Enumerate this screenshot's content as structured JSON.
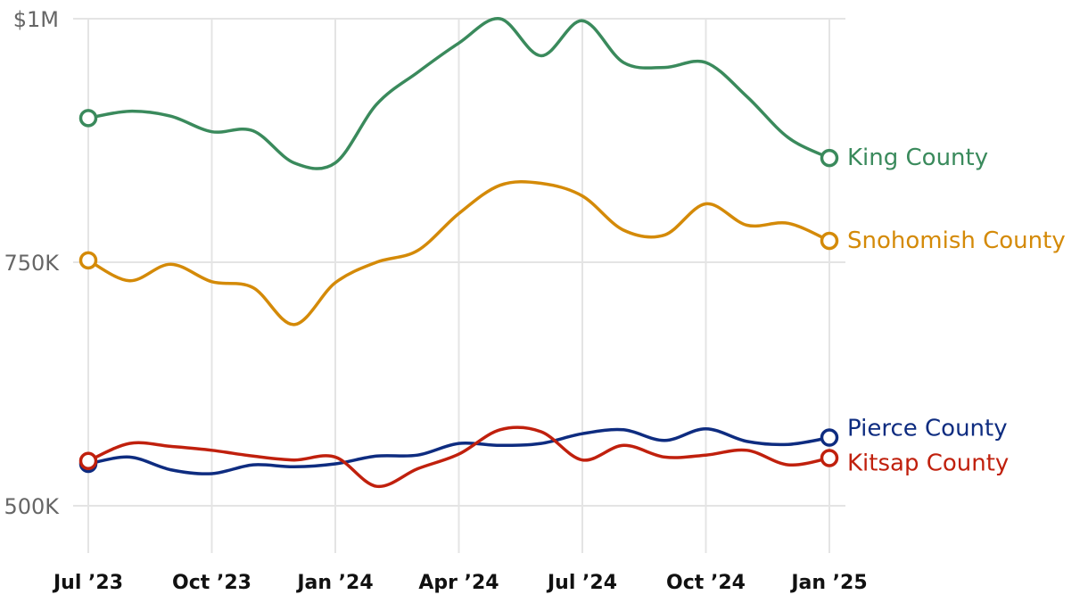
{
  "chart_data": {
    "type": "line",
    "title": "",
    "xlabel": "",
    "ylabel": "",
    "x": [
      "2023-07",
      "2023-08",
      "2023-09",
      "2023-10",
      "2023-11",
      "2023-12",
      "2024-01",
      "2024-02",
      "2024-03",
      "2024-04",
      "2024-05",
      "2024-06",
      "2024-07",
      "2024-08",
      "2024-09",
      "2024-10",
      "2024-11",
      "2024-12",
      "2025-01"
    ],
    "x_ticks": [
      {
        "x": "2023-07",
        "label": "Jul ’23"
      },
      {
        "x": "2023-10",
        "label": "Oct ’23"
      },
      {
        "x": "2024-01",
        "label": "Jan ’24"
      },
      {
        "x": "2024-04",
        "label": "Apr ’24"
      },
      {
        "x": "2024-07",
        "label": "Jul ’24"
      },
      {
        "x": "2024-10",
        "label": "Oct ’24"
      },
      {
        "x": "2025-01",
        "label": "Jan ’25"
      }
    ],
    "ylim": [
      500000,
      1000000
    ],
    "y_ticks": [
      {
        "value": 500000,
        "label": "500K"
      },
      {
        "value": 750000,
        "label": "750K"
      },
      {
        "value": 1000000,
        "label": "$1M"
      }
    ],
    "grid": true,
    "legend": "direct labels at line ends",
    "series": [
      {
        "name": "King County",
        "color": "#3a8a5c",
        "values": [
          898000,
          905000,
          900000,
          884000,
          885000,
          852000,
          852000,
          912000,
          945000,
          975000,
          1000000,
          962000,
          998000,
          955000,
          950000,
          955000,
          920000,
          878000,
          857000
        ]
      },
      {
        "name": "Snohomish County",
        "color": "#d48a08",
        "values": [
          752000,
          731000,
          748000,
          730000,
          724000,
          686000,
          729000,
          750000,
          762000,
          800000,
          829000,
          831000,
          818000,
          783000,
          778000,
          810000,
          788000,
          790000,
          772000
        ]
      },
      {
        "name": "Pierce County",
        "color": "#0e2c80",
        "values": [
          543000,
          550000,
          537000,
          533000,
          542000,
          540000,
          543000,
          551000,
          552000,
          564000,
          562000,
          564000,
          574000,
          578000,
          567000,
          579000,
          566000,
          563000,
          570000
        ]
      },
      {
        "name": "Kitsap County",
        "color": "#c0200d",
        "values": [
          546000,
          564000,
          561000,
          557000,
          551000,
          547000,
          550000,
          520000,
          538000,
          553000,
          578000,
          576000,
          547000,
          562000,
          550000,
          552000,
          557000,
          542000,
          549000
        ]
      }
    ]
  }
}
